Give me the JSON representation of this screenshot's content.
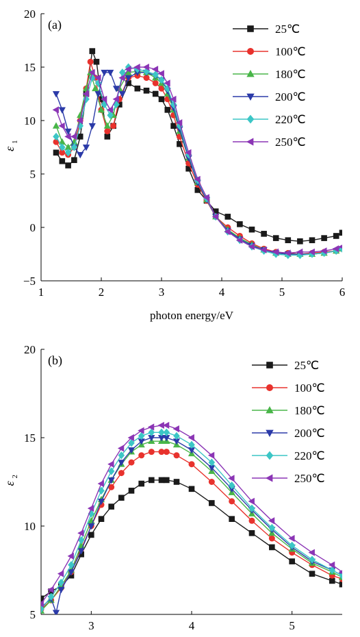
{
  "chart_data": [
    {
      "type": "line",
      "panel_label": "(a)",
      "xlabel": "photon energy/eV",
      "ylabel": "ε",
      "ylabel_sub": "1",
      "xlim": [
        1,
        6
      ],
      "ylim": [
        -5,
        20
      ],
      "xticks": [
        1,
        2,
        3,
        4,
        5,
        6
      ],
      "yticks": [
        -5,
        0,
        5,
        10,
        15,
        20
      ],
      "ytick_labels": [
        "−5",
        "0",
        "5",
        "10",
        "15",
        "20"
      ],
      "legend_position": "top-right",
      "series": [
        {
          "name": "25℃",
          "color": "#1a1a1a",
          "marker": "square",
          "x": [
            1.25,
            1.35,
            1.45,
            1.55,
            1.65,
            1.75,
            1.85,
            1.92,
            2.0,
            2.1,
            2.2,
            2.3,
            2.45,
            2.6,
            2.75,
            2.9,
            3.0,
            3.1,
            3.2,
            3.3,
            3.45,
            3.6,
            3.75,
            3.9,
            4.1,
            4.3,
            4.5,
            4.7,
            4.9,
            5.1,
            5.3,
            5.5,
            5.7,
            5.9,
            6.0
          ],
          "y": [
            7.0,
            6.2,
            5.8,
            6.3,
            8.5,
            12.5,
            16.5,
            15.5,
            12.0,
            8.5,
            9.5,
            11.5,
            13.5,
            13.0,
            12.8,
            12.5,
            12.0,
            11.0,
            9.5,
            7.8,
            5.5,
            3.5,
            2.5,
            1.5,
            1.0,
            0.3,
            -0.2,
            -0.6,
            -1.0,
            -1.2,
            -1.3,
            -1.2,
            -1.0,
            -0.8,
            -0.5
          ]
        },
        {
          "name": "100℃",
          "color": "#e8322d",
          "marker": "circle",
          "x": [
            1.25,
            1.35,
            1.45,
            1.55,
            1.65,
            1.75,
            1.82,
            1.9,
            2.0,
            2.1,
            2.2,
            2.3,
            2.45,
            2.6,
            2.75,
            2.9,
            3.0,
            3.1,
            3.2,
            3.3,
            3.45,
            3.6,
            3.75,
            3.9,
            4.1,
            4.3,
            4.5,
            4.7,
            4.9,
            5.1,
            5.3,
            5.5,
            5.7,
            5.9,
            6.0
          ],
          "y": [
            8.0,
            7.0,
            6.8,
            7.5,
            10.0,
            13.0,
            15.5,
            14.0,
            11.0,
            9.0,
            9.5,
            12.0,
            14.0,
            14.2,
            14.0,
            13.5,
            13.0,
            12.0,
            10.5,
            8.5,
            6.0,
            4.0,
            2.5,
            1.0,
            0.0,
            -0.8,
            -1.5,
            -2.0,
            -2.3,
            -2.4,
            -2.5,
            -2.4,
            -2.3,
            -2.2,
            -2.0
          ]
        },
        {
          "name": "180℃",
          "color": "#48b548",
          "marker": "triangle-up",
          "x": [
            1.25,
            1.35,
            1.45,
            1.55,
            1.65,
            1.75,
            1.82,
            1.9,
            2.0,
            2.1,
            2.2,
            2.3,
            2.45,
            2.6,
            2.75,
            2.9,
            3.0,
            3.1,
            3.2,
            3.3,
            3.45,
            3.6,
            3.75,
            3.9,
            4.1,
            4.3,
            4.5,
            4.7,
            4.9,
            5.1,
            5.3,
            5.5,
            5.7,
            5.9,
            6.0
          ],
          "y": [
            9.5,
            8.0,
            7.5,
            8.0,
            10.5,
            13.0,
            14.5,
            13.0,
            11.0,
            9.5,
            10.5,
            13.0,
            14.5,
            14.6,
            14.5,
            14.0,
            13.5,
            12.5,
            11.0,
            9.0,
            6.5,
            4.2,
            2.6,
            1.0,
            -0.2,
            -1.0,
            -1.6,
            -2.1,
            -2.4,
            -2.5,
            -2.5,
            -2.5,
            -2.4,
            -2.2,
            -2.0
          ]
        },
        {
          "name": "200℃",
          "color": "#2b3aa8",
          "marker": "triangle-down",
          "x": [
            1.25,
            1.35,
            1.45,
            1.55,
            1.65,
            1.75,
            1.85,
            1.95,
            2.05,
            2.15,
            2.25,
            2.35,
            2.45,
            2.6,
            2.75,
            2.9,
            3.0,
            3.1,
            3.2,
            3.3,
            3.45,
            3.6,
            3.75,
            3.9,
            4.1,
            4.3,
            4.5,
            4.7,
            4.9,
            5.1,
            5.3,
            5.5,
            5.7,
            5.9,
            6.0
          ],
          "y": [
            12.5,
            11.0,
            9.0,
            7.5,
            6.8,
            7.5,
            9.5,
            12.5,
            14.5,
            14.5,
            13.0,
            12.5,
            14.0,
            14.5,
            14.5,
            14.2,
            13.8,
            12.8,
            11.2,
            9.2,
            6.5,
            4.2,
            2.6,
            1.0,
            -0.3,
            -1.1,
            -1.7,
            -2.1,
            -2.4,
            -2.5,
            -2.5,
            -2.5,
            -2.4,
            -2.2,
            -2.0
          ]
        },
        {
          "name": "220℃",
          "color": "#3cc6c6",
          "marker": "diamond",
          "x": [
            1.25,
            1.35,
            1.45,
            1.55,
            1.65,
            1.75,
            1.85,
            1.95,
            2.05,
            2.15,
            2.25,
            2.35,
            2.45,
            2.6,
            2.75,
            2.9,
            3.0,
            3.1,
            3.2,
            3.3,
            3.45,
            3.6,
            3.75,
            3.9,
            4.1,
            4.3,
            4.5,
            4.7,
            4.9,
            5.1,
            5.3,
            5.5,
            5.7,
            5.9,
            6.0
          ],
          "y": [
            8.5,
            7.5,
            7.0,
            7.5,
            9.5,
            12.0,
            14.0,
            13.5,
            11.5,
            10.5,
            11.5,
            14.5,
            15.0,
            14.8,
            14.6,
            14.3,
            13.8,
            13.0,
            11.5,
            9.5,
            6.8,
            4.4,
            2.7,
            1.0,
            -0.4,
            -1.2,
            -1.8,
            -2.2,
            -2.5,
            -2.6,
            -2.6,
            -2.5,
            -2.4,
            -2.2,
            -2.0
          ]
        },
        {
          "name": "250℃",
          "color": "#8b35b5",
          "marker": "triangle-left",
          "x": [
            1.25,
            1.35,
            1.45,
            1.55,
            1.65,
            1.75,
            1.85,
            1.95,
            2.05,
            2.15,
            2.25,
            2.35,
            2.45,
            2.6,
            2.75,
            2.9,
            3.0,
            3.1,
            3.2,
            3.3,
            3.45,
            3.6,
            3.75,
            3.9,
            4.1,
            4.3,
            4.5,
            4.7,
            4.9,
            5.1,
            5.3,
            5.5,
            5.7,
            5.9,
            6.0
          ],
          "y": [
            11.0,
            9.5,
            8.5,
            8.5,
            10.0,
            12.5,
            14.5,
            14.0,
            12.0,
            11.0,
            12.0,
            14.0,
            14.8,
            15.0,
            15.0,
            14.8,
            14.4,
            13.5,
            12.0,
            9.8,
            7.0,
            4.5,
            2.8,
            1.0,
            -0.4,
            -1.2,
            -1.8,
            -2.1,
            -2.3,
            -2.4,
            -2.3,
            -2.3,
            -2.2,
            -2.0,
            -1.8
          ]
        }
      ]
    },
    {
      "type": "line",
      "panel_label": "(b)",
      "xlabel": "",
      "ylabel": "ε",
      "ylabel_sub": "2",
      "xlim": [
        2.5,
        5.5
      ],
      "ylim": [
        5,
        20
      ],
      "xticks": [
        3,
        4,
        5
      ],
      "yticks": [
        5,
        10,
        15,
        20
      ],
      "ytick_labels": [
        "5",
        "10",
        "15",
        "20"
      ],
      "legend_position": "top-right",
      "series": [
        {
          "name": "25℃",
          "color": "#1a1a1a",
          "marker": "square",
          "x": [
            2.5,
            2.6,
            2.7,
            2.8,
            2.9,
            3.0,
            3.1,
            3.2,
            3.3,
            3.4,
            3.5,
            3.6,
            3.7,
            3.75,
            3.85,
            4.0,
            4.2,
            4.4,
            4.6,
            4.8,
            5.0,
            5.2,
            5.4,
            5.5
          ],
          "y": [
            5.9,
            6.3,
            6.6,
            7.2,
            8.4,
            9.5,
            10.4,
            11.1,
            11.6,
            12.0,
            12.4,
            12.6,
            12.6,
            12.6,
            12.5,
            12.1,
            11.3,
            10.4,
            9.6,
            8.8,
            8.0,
            7.3,
            6.9,
            6.7
          ]
        },
        {
          "name": "100℃",
          "color": "#e8322d",
          "marker": "circle",
          "x": [
            2.5,
            2.6,
            2.7,
            2.8,
            2.9,
            3.0,
            3.1,
            3.2,
            3.3,
            3.4,
            3.5,
            3.6,
            3.7,
            3.75,
            3.85,
            4.0,
            4.2,
            4.4,
            4.6,
            4.8,
            5.0,
            5.2,
            5.4,
            5.5
          ],
          "y": [
            5.3,
            5.8,
            6.5,
            7.4,
            8.7,
            10.0,
            11.2,
            12.2,
            13.0,
            13.6,
            14.0,
            14.2,
            14.2,
            14.2,
            14.0,
            13.5,
            12.5,
            11.4,
            10.3,
            9.3,
            8.5,
            7.8,
            7.2,
            7.0
          ]
        },
        {
          "name": "180℃",
          "color": "#48b548",
          "marker": "triangle-up",
          "x": [
            2.5,
            2.6,
            2.7,
            2.8,
            2.9,
            3.0,
            3.1,
            3.2,
            3.3,
            3.4,
            3.5,
            3.6,
            3.7,
            3.75,
            3.85,
            4.0,
            4.2,
            4.4,
            4.6,
            4.8,
            5.0,
            5.2,
            5.4,
            5.5
          ],
          "y": [
            5.2,
            5.8,
            6.6,
            7.5,
            8.9,
            10.3,
            11.5,
            12.6,
            13.5,
            14.2,
            14.6,
            14.8,
            14.8,
            14.8,
            14.6,
            14.1,
            13.1,
            11.9,
            10.7,
            9.6,
            8.7,
            7.9,
            7.4,
            7.1
          ]
        },
        {
          "name": "200℃",
          "color": "#2b3aa8",
          "marker": "triangle-down",
          "x": [
            2.5,
            2.6,
            2.65,
            2.7,
            2.8,
            2.9,
            3.0,
            3.1,
            3.2,
            3.3,
            3.4,
            3.5,
            3.6,
            3.7,
            3.75,
            3.85,
            4.0,
            4.2,
            4.4,
            4.6,
            4.8,
            5.0,
            5.2,
            5.4,
            5.5
          ],
          "y": [
            5.4,
            5.9,
            5.1,
            6.4,
            7.4,
            8.6,
            10.0,
            11.4,
            12.6,
            13.6,
            14.3,
            14.8,
            15.0,
            15.0,
            15.0,
            14.8,
            14.3,
            13.3,
            12.1,
            10.9,
            9.8,
            8.8,
            8.0,
            7.5,
            7.2
          ]
        },
        {
          "name": "220℃",
          "color": "#3cc6c6",
          "marker": "diamond",
          "x": [
            2.5,
            2.6,
            2.7,
            2.8,
            2.9,
            3.0,
            3.1,
            3.2,
            3.3,
            3.4,
            3.5,
            3.6,
            3.7,
            3.75,
            3.85,
            4.0,
            4.2,
            4.4,
            4.6,
            4.8,
            5.0,
            5.2,
            5.4,
            5.5
          ],
          "y": [
            5.3,
            6.0,
            6.8,
            7.8,
            9.2,
            10.7,
            12.0,
            13.1,
            14.0,
            14.7,
            15.1,
            15.3,
            15.3,
            15.3,
            15.1,
            14.6,
            13.6,
            12.3,
            11.0,
            9.9,
            8.9,
            8.1,
            7.5,
            7.2
          ]
        },
        {
          "name": "250℃",
          "color": "#8b35b5",
          "marker": "triangle-left",
          "x": [
            2.5,
            2.6,
            2.7,
            2.8,
            2.9,
            3.0,
            3.1,
            3.2,
            3.3,
            3.4,
            3.5,
            3.6,
            3.7,
            3.75,
            3.85,
            4.0,
            4.2,
            4.4,
            4.6,
            4.8,
            5.0,
            5.2,
            5.4,
            5.5
          ],
          "y": [
            5.6,
            6.4,
            7.3,
            8.3,
            9.6,
            11.0,
            12.4,
            13.5,
            14.4,
            15.0,
            15.4,
            15.6,
            15.7,
            15.7,
            15.5,
            15.0,
            14.0,
            12.7,
            11.4,
            10.3,
            9.3,
            8.5,
            7.8,
            7.4
          ]
        }
      ]
    }
  ]
}
